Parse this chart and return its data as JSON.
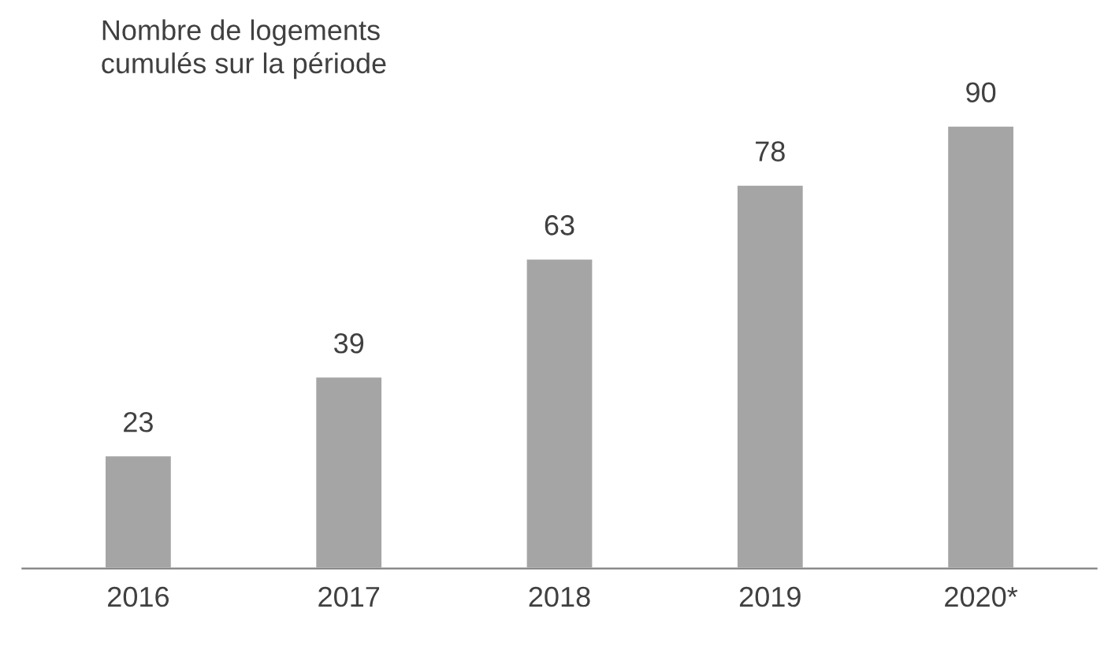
{
  "chart_data": {
    "type": "bar",
    "title": "Nombre de logements\ncumulés sur la période",
    "categories": [
      "2016",
      "2017",
      "2018",
      "2019",
      "2020*"
    ],
    "values": [
      23,
      39,
      63,
      78,
      90
    ],
    "color": "#a5a5a5",
    "data_labels": true,
    "grid": false,
    "legend": false
  }
}
